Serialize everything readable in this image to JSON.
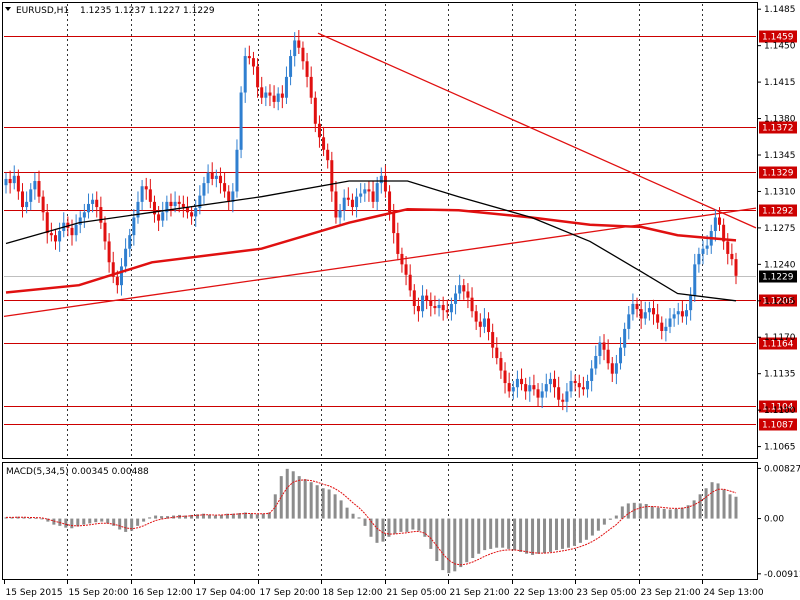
{
  "header": {
    "symbol": "EURUSD,H1",
    "ohlc": "1.1235 1.1237 1.1227 1.1229"
  },
  "macd_header": {
    "label": "MACD(5,34,5) 0.00345 0.00488"
  },
  "colors": {
    "background": "#ffffff",
    "candle_up": "#2f7fd0",
    "candle_down": "#e01010",
    "line_red": "#e01010",
    "line_black": "#000000",
    "macd_bar": "#8c8c8c",
    "signal": "#e01010",
    "hline": "#cc0000",
    "grid": "#000000"
  },
  "chart_data": [
    {
      "type": "candlestick",
      "title": "EURUSD,H1",
      "ylim": [
        1.1055,
        1.149
      ],
      "y_ticks": [
        "1.1485",
        "1.1450",
        "1.1415",
        "1.1380",
        "1.1345",
        "1.1310",
        "1.1275",
        "1.1240",
        "1.1205",
        "1.1170",
        "1.1135",
        "1.1100",
        "1.1065"
      ],
      "y_tick_values": [
        1.1485,
        1.145,
        1.1415,
        1.138,
        1.1345,
        1.131,
        1.1275,
        1.124,
        1.1205,
        1.117,
        1.1135,
        1.11,
        1.1065
      ],
      "x_ticks": [
        "15 Sep 2015",
        "15 Sep 20:00",
        "16 Sep 12:00",
        "17 Sep 04:00",
        "17 Sep 20:00",
        "18 Sep 12:00",
        "21 Sep 05:00",
        "21 Sep 21:00",
        "22 Sep 13:00",
        "23 Sep 05:00",
        "23 Sep 21:00",
        "24 Sep 13:00"
      ],
      "levels": [
        {
          "label": "1.1459",
          "value": 1.1459
        },
        {
          "label": "1.1372",
          "value": 1.1372
        },
        {
          "label": "1.1329",
          "value": 1.1329
        },
        {
          "label": "1.1292",
          "value": 1.1292
        },
        {
          "label": "1.1206",
          "value": 1.1206
        },
        {
          "label": "1.1164",
          "value": 1.1164
        },
        {
          "label": "1.1104",
          "value": 1.1104
        },
        {
          "label": "1.1087",
          "value": 1.1087
        }
      ],
      "current_price": {
        "label": "1.1229",
        "value": 1.1229
      },
      "close_series": [
        1.1322,
        1.1318,
        1.1325,
        1.131,
        1.1295,
        1.13,
        1.1312,
        1.132,
        1.1305,
        1.129,
        1.127,
        1.1268,
        1.1262,
        1.1272,
        1.128,
        1.1275,
        1.1268,
        1.1278,
        1.1285,
        1.129,
        1.1298,
        1.1302,
        1.1295,
        1.128,
        1.1262,
        1.1242,
        1.1228,
        1.122,
        1.1238,
        1.1255,
        1.1268,
        1.1285,
        1.13,
        1.1315,
        1.1312,
        1.13,
        1.1288,
        1.1282,
        1.129,
        1.13,
        1.1296,
        1.13,
        1.1298,
        1.1295,
        1.129,
        1.1286,
        1.1294,
        1.1306,
        1.1318,
        1.1328,
        1.1322,
        1.1325,
        1.1318,
        1.131,
        1.13,
        1.131,
        1.135,
        1.1405,
        1.144,
        1.1438,
        1.143,
        1.141,
        1.14,
        1.1405,
        1.1402,
        1.1396,
        1.1404,
        1.14,
        1.142,
        1.144,
        1.1455,
        1.1448,
        1.1435,
        1.142,
        1.14,
        1.1375,
        1.1362,
        1.135,
        1.134,
        1.131,
        1.1285,
        1.1292,
        1.1304,
        1.1302,
        1.1295,
        1.1305,
        1.1308,
        1.1312,
        1.131,
        1.13,
        1.1318,
        1.1325,
        1.131,
        1.129,
        1.127,
        1.125,
        1.124,
        1.123,
        1.1215,
        1.12,
        1.1195,
        1.121,
        1.1205,
        1.12,
        1.1198,
        1.1201,
        1.1196,
        1.1194,
        1.1202,
        1.1212,
        1.122,
        1.1214,
        1.1208,
        1.1195,
        1.1185,
        1.118,
        1.1188,
        1.1175,
        1.116,
        1.115,
        1.1138,
        1.1126,
        1.1118,
        1.1122,
        1.113,
        1.1125,
        1.1118,
        1.1124,
        1.112,
        1.1112,
        1.1118,
        1.1125,
        1.113,
        1.1122,
        1.111,
        1.1108,
        1.1118,
        1.1128,
        1.1126,
        1.1122,
        1.112,
        1.1128,
        1.114,
        1.1152,
        1.1165,
        1.1158,
        1.1145,
        1.1135,
        1.1145,
        1.116,
        1.1178,
        1.1192,
        1.1202,
        1.1197,
        1.1188,
        1.1194,
        1.1198,
        1.1192,
        1.1184,
        1.1176,
        1.118,
        1.1188,
        1.1192,
        1.1195,
        1.119,
        1.1196,
        1.121,
        1.124,
        1.125,
        1.1255,
        1.1258,
        1.1272,
        1.1285,
        1.1278,
        1.1262,
        1.125,
        1.1245,
        1.1229
      ],
      "ma_black": [
        [
          0,
          1.126
        ],
        [
          0.1,
          1.128
        ],
        [
          0.2,
          1.129
        ],
        [
          0.35,
          1.1305
        ],
        [
          0.47,
          1.132
        ],
        [
          0.55,
          1.132
        ],
        [
          0.62,
          1.1305
        ],
        [
          0.72,
          1.1285
        ],
        [
          0.8,
          1.1262
        ],
        [
          0.87,
          1.1233
        ],
        [
          0.92,
          1.1212
        ],
        [
          1.0,
          1.1205
        ]
      ],
      "ma_red": [
        [
          0,
          1.1213
        ],
        [
          0.1,
          1.122
        ],
        [
          0.2,
          1.1242
        ],
        [
          0.35,
          1.1255
        ],
        [
          0.47,
          1.128
        ],
        [
          0.55,
          1.1293
        ],
        [
          0.62,
          1.1292
        ],
        [
          0.72,
          1.1285
        ],
        [
          0.8,
          1.1278
        ],
        [
          0.87,
          1.1276
        ],
        [
          0.92,
          1.1268
        ],
        [
          1.0,
          1.1263
        ]
      ]
    },
    {
      "type": "bar",
      "title": "MACD(5,34,5) 0.00345 0.00488",
      "ylim": [
        -0.0098,
        0.009
      ],
      "y_ticks": [
        "0.00827",
        "0.00",
        "-0.00911"
      ],
      "y_tick_values": [
        0.00827,
        0.0,
        -0.00911
      ],
      "macd_values": [
        0.0002,
        0.0002,
        0.0003,
        0.0002,
        0.0001,
        0.0001,
        0.0,
        -0.0005,
        -0.001,
        -0.0012,
        -0.0015,
        -0.0016,
        -0.0013,
        -0.001,
        -0.0008,
        -0.0006,
        -0.0005,
        -0.0008,
        -0.0012,
        -0.0018,
        -0.0022,
        -0.002,
        -0.0012,
        -0.0005,
        0.0002,
        0.0005,
        0.0004,
        0.0004,
        0.0005,
        0.0006,
        0.0005,
        0.0006,
        0.0007,
        0.0008,
        0.0006,
        0.0005,
        0.0006,
        0.0008,
        0.0008,
        0.0009,
        0.001,
        0.0008,
        0.0007,
        0.0008,
        0.001,
        0.004,
        0.007,
        0.0082,
        0.0078,
        0.007,
        0.0065,
        0.006,
        0.0055,
        0.005,
        0.0048,
        0.004,
        0.003,
        0.0018,
        0.0008,
        0.0002,
        -0.0012,
        -0.003,
        -0.004,
        -0.0038,
        -0.003,
        -0.0025,
        -0.0022,
        -0.0022,
        -0.0018,
        -0.002,
        -0.003,
        -0.005,
        -0.007,
        -0.0085,
        -0.009,
        -0.0087,
        -0.008,
        -0.0072,
        -0.0065,
        -0.0058,
        -0.0052,
        -0.005,
        -0.0048,
        -0.0048,
        -0.005,
        -0.0052,
        -0.0055,
        -0.0058,
        -0.006,
        -0.0058,
        -0.0057,
        -0.0055,
        -0.0052,
        -0.005,
        -0.0048,
        -0.0045,
        -0.004,
        -0.0035,
        -0.0028,
        -0.002,
        -0.001,
        -0.0002,
        0.0005,
        0.002,
        0.0025,
        0.0026,
        0.0025,
        0.0024,
        0.002,
        0.0018,
        0.0016,
        0.0015,
        0.0016,
        0.0018,
        0.0022,
        0.003,
        0.004,
        0.005,
        0.006,
        0.0058,
        0.0048,
        0.004,
        0.0036
      ]
    }
  ]
}
